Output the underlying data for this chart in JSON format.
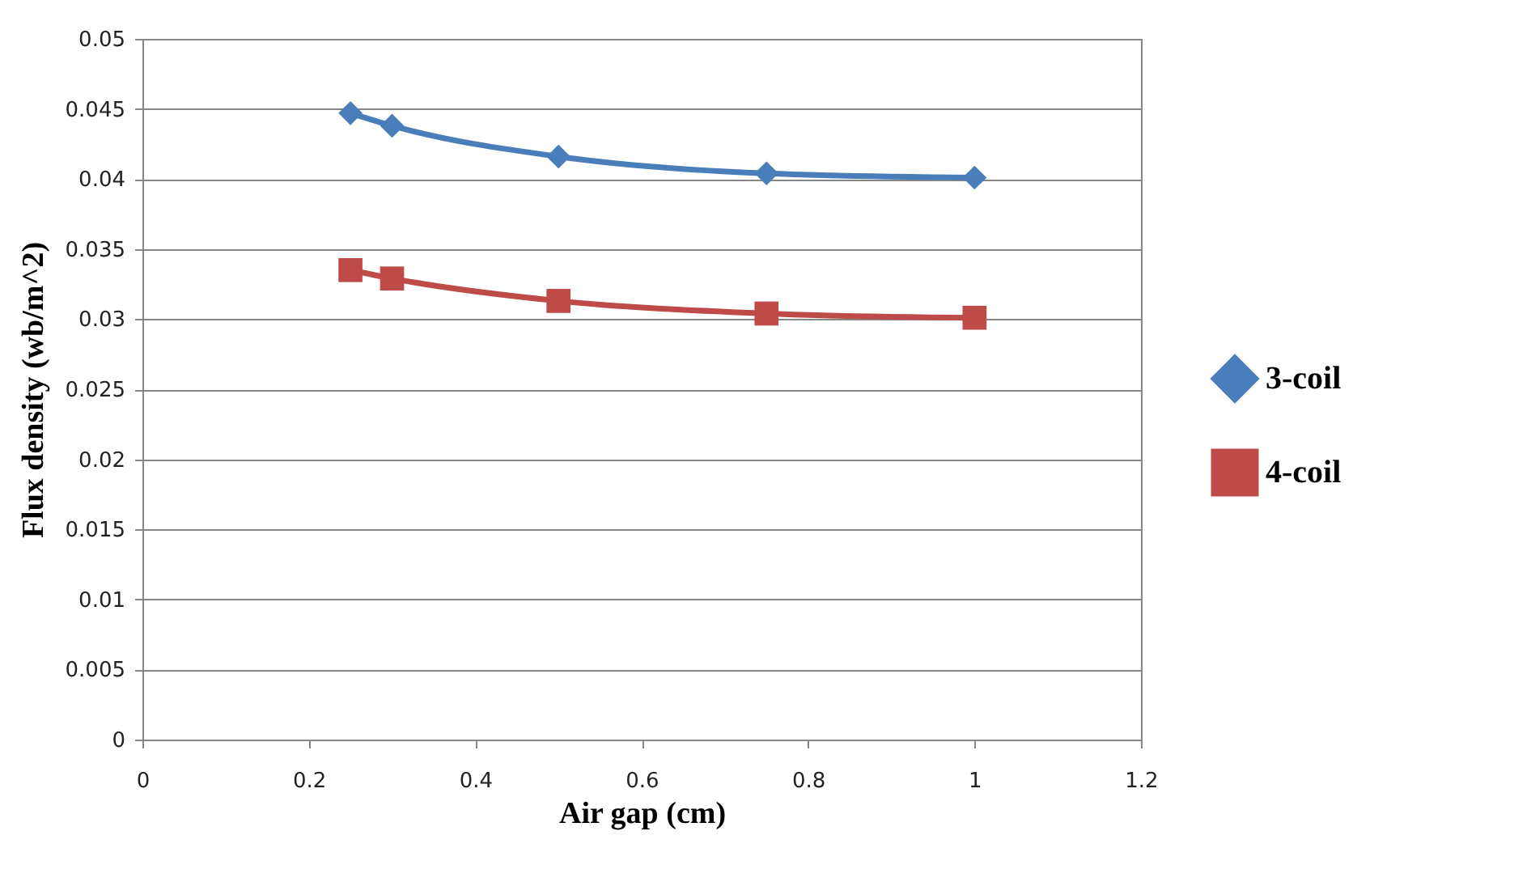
{
  "chart_data": {
    "type": "line",
    "xlabel": "Air gap (cm)",
    "ylabel": "Flux density (wb/m^2)",
    "x": [
      0.25,
      0.3,
      0.5,
      0.75,
      1
    ],
    "series": [
      {
        "name": "3-coil",
        "color": "#4a7ebb",
        "marker": "diamond",
        "values": [
          0.0447,
          0.0438,
          0.0416,
          0.0404,
          0.0401
        ]
      },
      {
        "name": "4-coil",
        "color": "#be4b48",
        "marker": "square",
        "values": [
          0.0335,
          0.0329,
          0.0313,
          0.0304,
          0.0301
        ]
      }
    ],
    "xlim": [
      0,
      1.2
    ],
    "xticks": [
      0,
      0.2,
      0.4,
      0.6,
      0.8,
      1,
      1.2
    ],
    "ylim": [
      0,
      0.05
    ],
    "yticks": [
      0,
      0.005,
      0.01,
      0.015,
      0.02,
      0.025,
      0.03,
      0.035,
      0.04,
      0.045,
      0.05
    ],
    "grid": "y",
    "legend": "right"
  }
}
